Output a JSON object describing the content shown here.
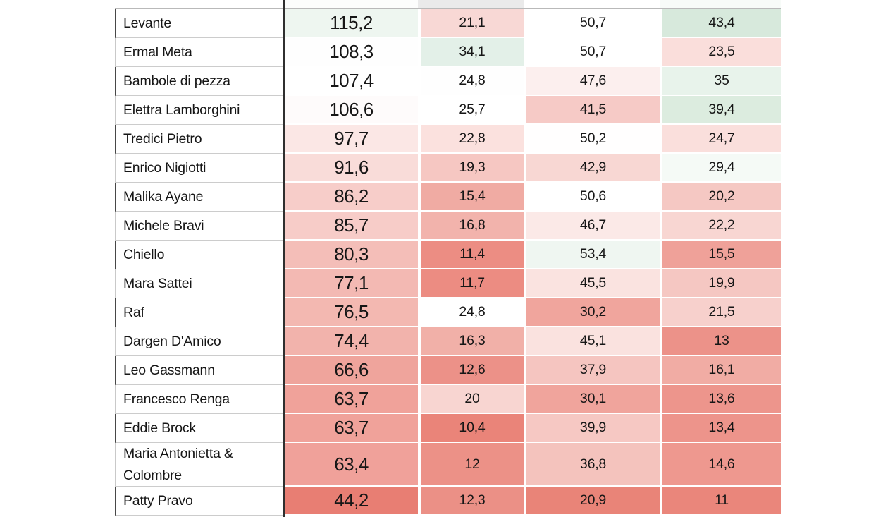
{
  "style": {
    "background": "#ffffff",
    "text_color": "#161616",
    "divider_color": "#2f2f2f",
    "row_border_color": "#cccccc",
    "left_tick_dark": "#474747",
    "left_tick_light": "#c9c9c9",
    "top_sliver_colors": [
      "#ffffff",
      "#fcfdfc",
      "#eaeaea",
      "#ffffff",
      "#f7fbf8"
    ]
  },
  "chart_data": {
    "type": "heatmap",
    "title": "",
    "column_headers_visible": false,
    "value_format": "decimal-comma",
    "color_scale": {
      "low": "#e87e73",
      "mid": "#ffffff",
      "high": "#d7e9dc"
    },
    "rows": [
      {
        "artist": "Levante",
        "values": [
          115.2,
          21.1,
          50.7,
          43.4
        ],
        "display": [
          "115,2",
          "21,1",
          "50,7",
          "43,4"
        ],
        "cell_colors": [
          "#eef6f0",
          "#f8d8d5",
          "#ffffff",
          "#d7e9dc"
        ]
      },
      {
        "artist": "Ermal Meta",
        "values": [
          108.3,
          34.1,
          50.7,
          23.5
        ],
        "display": [
          "108,3",
          "34,1",
          "50,7",
          "23,5"
        ],
        "cell_colors": [
          "#fefefe",
          "#e3f0e8",
          "#ffffff",
          "#fadedb"
        ]
      },
      {
        "artist": "Bambole di pezza",
        "values": [
          107.4,
          24.8,
          47.6,
          35
        ],
        "display": [
          "107,4",
          "24,8",
          "47,6",
          "35"
        ],
        "cell_colors": [
          "#ffffff",
          "#fefefe",
          "#fcefee",
          "#e8f3eb"
        ]
      },
      {
        "artist": "Elettra Lamborghini",
        "values": [
          106.6,
          25.7,
          41.5,
          39.4
        ],
        "display": [
          "106,6",
          "25,7",
          "41,5",
          "39,4"
        ],
        "cell_colors": [
          "#fefbfb",
          "#ffffff",
          "#f6cac6",
          "#dcecdf"
        ]
      },
      {
        "artist": "Tredici Pietro",
        "values": [
          97.7,
          22.8,
          50.2,
          24.7
        ],
        "display": [
          "97,7",
          "22,8",
          "50,2",
          "24,7"
        ],
        "cell_colors": [
          "#fbe7e5",
          "#fbe1de",
          "#fffefe",
          "#fadfdc"
        ]
      },
      {
        "artist": "Enrico Nigiotti",
        "values": [
          91.6,
          19.3,
          42.9,
          29.4
        ],
        "display": [
          "91,6",
          "19,3",
          "42,9",
          "29,4"
        ],
        "cell_colors": [
          "#f9dcd9",
          "#f6c7c2",
          "#f8d7d3",
          "#f5faf6"
        ]
      },
      {
        "artist": "Malika Ayane",
        "values": [
          86.2,
          15.4,
          50.6,
          20.2
        ],
        "display": [
          "86,2",
          "15,4",
          "50,6",
          "20,2"
        ],
        "cell_colors": [
          "#f7cdc9",
          "#f0aba3",
          "#ffffff",
          "#f5c8c3"
        ]
      },
      {
        "artist": "Michele Bravi",
        "values": [
          85.7,
          16.8,
          46.7,
          22.2
        ],
        "display": [
          "85,7",
          "16,8",
          "46,7",
          "22,2"
        ],
        "cell_colors": [
          "#f7ccc8",
          "#f2b3ac",
          "#fbe9e7",
          "#f8d6d2"
        ]
      },
      {
        "artist": "Chiello",
        "values": [
          80.3,
          11.4,
          53.4,
          15.5
        ],
        "display": [
          "80,3",
          "11,4",
          "53,4",
          "15,5"
        ],
        "cell_colors": [
          "#f4beb8",
          "#ec8d83",
          "#eff6f1",
          "#efa199"
        ]
      },
      {
        "artist": "Mara Sattei",
        "values": [
          77.1,
          11.7,
          45.5,
          19.9
        ],
        "display": [
          "77,1",
          "11,7",
          "45,5",
          "19,9"
        ],
        "cell_colors": [
          "#f3b9b3",
          "#ec8c82",
          "#fae3e0",
          "#f5c7c2"
        ]
      },
      {
        "artist": "Raf",
        "values": [
          76.5,
          24.8,
          30.2,
          21.5
        ],
        "display": [
          "76,5",
          "24,8",
          "30,2",
          "21,5"
        ],
        "cell_colors": [
          "#f3b8b1",
          "#ffffff",
          "#f0a59d",
          "#f7d0cc"
        ]
      },
      {
        "artist": "Dargen D'Amico",
        "values": [
          74.4,
          16.3,
          45.1,
          13
        ],
        "display": [
          "74,4",
          "16,3",
          "45,1",
          "13"
        ],
        "cell_colors": [
          "#f2b3ac",
          "#f1b0a8",
          "#fae2df",
          "#ec9289"
        ]
      },
      {
        "artist": "Leo Gassmann",
        "values": [
          66.6,
          12.6,
          37.9,
          16.1
        ],
        "display": [
          "66,6",
          "12,6",
          "37,9",
          "16,1"
        ],
        "cell_colors": [
          "#efa49c",
          "#ec9188",
          "#f5c5c0",
          "#f1aca4"
        ]
      },
      {
        "artist": "Francesco Renga",
        "values": [
          63.7,
          20,
          30.1,
          13.6
        ],
        "display": [
          "63,7",
          "20",
          "30,1",
          "13,6"
        ],
        "cell_colors": [
          "#f0a29a",
          "#f8d5d1",
          "#f0a49c",
          "#ed958c"
        ]
      },
      {
        "artist": "Eddie Brock",
        "values": [
          63.7,
          10.4,
          39.9,
          13.4
        ],
        "display": [
          "63,7",
          "10,4",
          "39,9",
          "13,4"
        ],
        "cell_colors": [
          "#f0a29a",
          "#ea8479",
          "#f6c8c3",
          "#ed948b"
        ]
      },
      {
        "artist": "Maria Antonietta & Colombre",
        "values": [
          63.4,
          12,
          36.8,
          14.6
        ],
        "display": [
          "63,4",
          "12",
          "36,8",
          "14,6"
        ],
        "cell_colors": [
          "#f0a19a",
          "#ec9187",
          "#f4c3bd",
          "#ee988f"
        ]
      },
      {
        "artist": "Patty Pravo",
        "values": [
          44.2,
          12.3,
          20.9,
          11
        ],
        "display": [
          "44,2",
          "12,3",
          "20,9",
          "11"
        ],
        "cell_colors": [
          "#e87e73",
          "#eb9086",
          "#e98478",
          "#ea867b"
        ]
      }
    ]
  }
}
